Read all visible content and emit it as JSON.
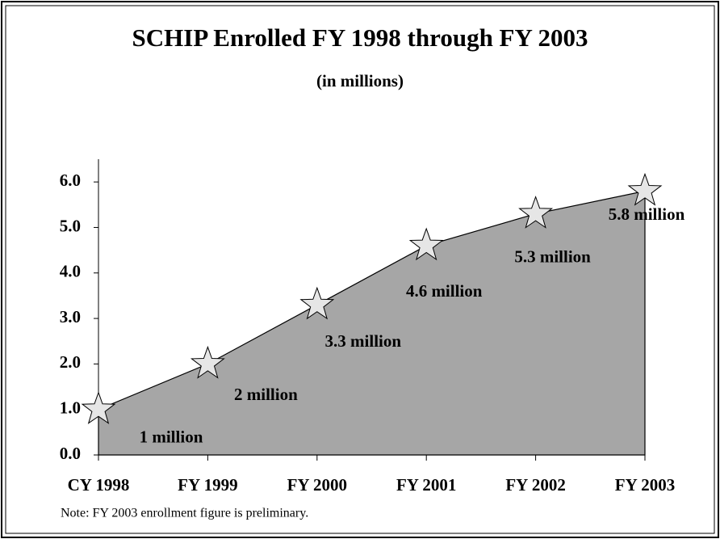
{
  "chart_data": {
    "type": "area",
    "title": "SCHIP Enrolled FY 1998 through FY 2003",
    "subtitle": "(in millions)",
    "categories": [
      "CY 1998",
      "FY 1999",
      "FY 2000",
      "FY 2001",
      "FY 2002",
      "FY 2003"
    ],
    "values": [
      1,
      2,
      3.3,
      4.6,
      5.3,
      5.8
    ],
    "value_labels": [
      "1 million",
      "2 million",
      "3.3 million",
      "4.6 million",
      "5.3 million",
      "5.8 million"
    ],
    "color": "#a6a6a6",
    "marker_color": "#e6e6e6",
    "ylim": [
      0,
      6.5
    ],
    "yticks": [
      {
        "value": 0,
        "label": "0.0"
      },
      {
        "value": 1,
        "label": "1.0"
      },
      {
        "value": 2,
        "label": "2.0"
      },
      {
        "value": 3,
        "label": "3.0"
      },
      {
        "value": 4,
        "label": "4.0"
      },
      {
        "value": 5,
        "label": "5.0"
      },
      {
        "value": 6,
        "label": "6.0"
      }
    ],
    "note": "Note: FY 2003 enrollment figure is preliminary."
  }
}
